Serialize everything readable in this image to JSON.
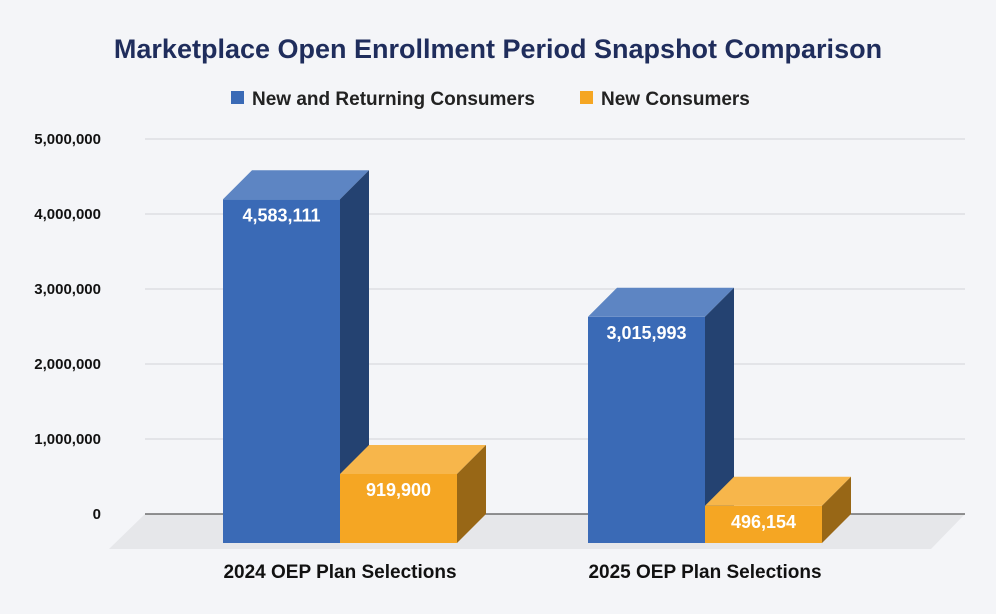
{
  "chart_data": {
    "type": "bar",
    "title": "Marketplace Open Enrollment Period Snapshot Comparison",
    "xlabel": "",
    "ylabel": "",
    "categories": [
      "2024 OEP Plan Selections",
      "2025 OEP Plan Selections"
    ],
    "series": [
      {
        "name": "New and Returning Consumers",
        "values": [
          4583111,
          3015993
        ],
        "value_labels": [
          "4,583,111",
          "3,015,993"
        ],
        "color": "#3a6ab6"
      },
      {
        "name": "New Consumers",
        "values": [
          919900,
          496154
        ],
        "value_labels": [
          "919,900",
          "496,154"
        ],
        "color": "#f5a623"
      }
    ],
    "ylim": [
      0,
      5000000
    ],
    "yticks": [
      0,
      1000000,
      2000000,
      3000000,
      4000000,
      5000000
    ],
    "ytick_labels": [
      "0",
      "1,000,000",
      "2,000,000",
      "3,000,000",
      "4,000,000",
      "5,000,000"
    ],
    "grid": true,
    "legend_position": "top-center",
    "style": "3d"
  }
}
